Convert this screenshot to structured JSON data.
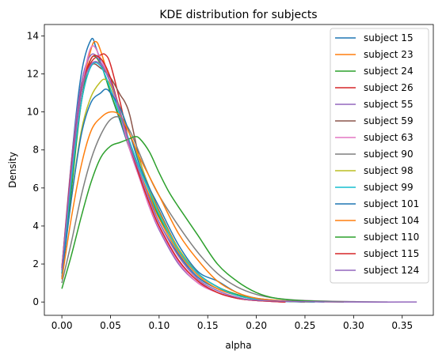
{
  "chart_data": {
    "type": "line",
    "title": "KDE distribution for subjects",
    "xlabel": "alpha",
    "ylabel": "Density",
    "xlim": [
      -0.018,
      0.382
    ],
    "ylim": [
      -0.7,
      14.6
    ],
    "xticks": [
      0.0,
      0.05,
      0.1,
      0.15,
      0.2,
      0.25,
      0.3,
      0.35
    ],
    "xtick_labels": [
      "0.00",
      "0.05",
      "0.10",
      "0.15",
      "0.20",
      "0.25",
      "0.30",
      "0.35"
    ],
    "yticks": [
      0,
      2,
      4,
      6,
      8,
      10,
      12,
      14
    ],
    "ytick_labels": [
      "0",
      "2",
      "4",
      "6",
      "8",
      "10",
      "12",
      "14"
    ],
    "grid": false,
    "legend_position": "top-right",
    "series": [
      {
        "name": "subject 15",
        "color": "#1f77b4",
        "x": [
          0.0,
          0.01,
          0.02,
          0.03,
          0.035,
          0.04,
          0.05,
          0.06,
          0.07,
          0.08,
          0.09,
          0.1,
          0.12,
          0.14,
          0.16,
          0.18,
          0.2,
          0.22,
          0.25
        ],
        "y": [
          1.2,
          7.5,
          12.0,
          13.8,
          13.4,
          12.6,
          11.0,
          9.5,
          8.0,
          6.8,
          5.5,
          4.2,
          2.5,
          1.3,
          0.7,
          0.35,
          0.15,
          0.05,
          0.0
        ]
      },
      {
        "name": "subject 23",
        "color": "#ff7f0e",
        "x": [
          0.0,
          0.01,
          0.02,
          0.03,
          0.035,
          0.04,
          0.05,
          0.06,
          0.07,
          0.08,
          0.09,
          0.1,
          0.12,
          0.14,
          0.16,
          0.18,
          0.2,
          0.23,
          0.26
        ],
        "y": [
          1.5,
          6.5,
          11.0,
          13.3,
          13.7,
          13.2,
          11.5,
          9.8,
          8.0,
          6.8,
          5.6,
          4.4,
          2.6,
          1.4,
          0.7,
          0.35,
          0.15,
          0.05,
          0.0
        ]
      },
      {
        "name": "subject 24",
        "color": "#2ca02c",
        "x": [
          0.0,
          0.01,
          0.02,
          0.03,
          0.04,
          0.05,
          0.06,
          0.07,
          0.08,
          0.09,
          0.1,
          0.12,
          0.14,
          0.16,
          0.18,
          0.2,
          0.23,
          0.26
        ],
        "y": [
          1.5,
          6.0,
          10.5,
          12.8,
          12.5,
          11.0,
          9.6,
          8.2,
          7.0,
          5.8,
          4.5,
          2.8,
          1.5,
          0.8,
          0.4,
          0.15,
          0.05,
          0.0
        ]
      },
      {
        "name": "subject 26",
        "color": "#d62728",
        "x": [
          0.0,
          0.01,
          0.02,
          0.03,
          0.04,
          0.045,
          0.05,
          0.06,
          0.07,
          0.08,
          0.09,
          0.1,
          0.12,
          0.14,
          0.16,
          0.18,
          0.2,
          0.23
        ],
        "y": [
          1.8,
          7.0,
          11.2,
          12.6,
          13.0,
          13.0,
          12.5,
          10.5,
          8.2,
          6.6,
          5.2,
          4.0,
          2.2,
          1.1,
          0.5,
          0.2,
          0.08,
          0.0
        ]
      },
      {
        "name": "subject 55",
        "color": "#9467bd",
        "x": [
          0.0,
          0.01,
          0.02,
          0.03,
          0.04,
          0.05,
          0.06,
          0.07,
          0.08,
          0.09,
          0.1,
          0.12,
          0.14,
          0.16,
          0.18,
          0.2,
          0.23
        ],
        "y": [
          1.7,
          7.5,
          11.5,
          13.0,
          12.6,
          11.5,
          10.0,
          8.0,
          6.5,
          5.0,
          3.8,
          2.0,
          1.0,
          0.5,
          0.2,
          0.08,
          0.0
        ]
      },
      {
        "name": "subject 59",
        "color": "#8c564b",
        "x": [
          0.0,
          0.01,
          0.02,
          0.03,
          0.04,
          0.05,
          0.06,
          0.065,
          0.07,
          0.08,
          0.09,
          0.1,
          0.12,
          0.14,
          0.16,
          0.18,
          0.2,
          0.23,
          0.25
        ],
        "y": [
          1.5,
          6.5,
          10.5,
          12.4,
          12.3,
          11.8,
          10.9,
          10.5,
          9.8,
          7.5,
          6.0,
          4.8,
          2.8,
          1.5,
          0.8,
          0.35,
          0.15,
          0.05,
          0.0
        ]
      },
      {
        "name": "subject 63",
        "color": "#e377c2",
        "x": [
          0.0,
          0.01,
          0.02,
          0.03,
          0.04,
          0.05,
          0.06,
          0.07,
          0.08,
          0.09,
          0.1,
          0.12,
          0.14,
          0.16,
          0.18,
          0.2,
          0.23
        ],
        "y": [
          1.6,
          7.0,
          11.0,
          13.4,
          12.8,
          11.5,
          9.8,
          8.0,
          6.5,
          5.0,
          3.9,
          2.1,
          1.0,
          0.5,
          0.2,
          0.08,
          0.0
        ]
      },
      {
        "name": "subject 90",
        "color": "#7f7f7f",
        "x": [
          0.0,
          0.01,
          0.02,
          0.03,
          0.04,
          0.05,
          0.06,
          0.07,
          0.08,
          0.09,
          0.1,
          0.12,
          0.14,
          0.16,
          0.18,
          0.2,
          0.22,
          0.25,
          0.3,
          0.335
        ],
        "y": [
          1.0,
          3.2,
          5.6,
          7.5,
          8.8,
          9.6,
          9.7,
          9.0,
          7.8,
          6.6,
          5.6,
          4.0,
          2.6,
          1.5,
          0.8,
          0.4,
          0.2,
          0.08,
          0.02,
          0.0
        ]
      },
      {
        "name": "subject 98",
        "color": "#bcbd22",
        "x": [
          0.0,
          0.01,
          0.02,
          0.03,
          0.04,
          0.045,
          0.05,
          0.06,
          0.07,
          0.08,
          0.09,
          0.1,
          0.12,
          0.14,
          0.16,
          0.18,
          0.2,
          0.23,
          0.26
        ],
        "y": [
          1.5,
          5.5,
          9.0,
          10.8,
          11.6,
          11.7,
          11.4,
          10.2,
          8.8,
          7.4,
          6.0,
          4.7,
          2.8,
          1.5,
          0.8,
          0.35,
          0.15,
          0.05,
          0.0
        ]
      },
      {
        "name": "subject 99",
        "color": "#17becf",
        "x": [
          0.0,
          0.01,
          0.02,
          0.03,
          0.04,
          0.05,
          0.06,
          0.07,
          0.08,
          0.09,
          0.1,
          0.12,
          0.14,
          0.16,
          0.18,
          0.2,
          0.23,
          0.26
        ],
        "y": [
          1.5,
          6.5,
          10.5,
          12.4,
          12.4,
          11.2,
          9.8,
          8.4,
          7.0,
          5.8,
          4.6,
          2.7,
          1.5,
          0.8,
          0.35,
          0.15,
          0.05,
          0.0
        ]
      },
      {
        "name": "subject 101",
        "color": "#1f77b4",
        "x": [
          0.0,
          0.01,
          0.02,
          0.03,
          0.04,
          0.045,
          0.05,
          0.06,
          0.07,
          0.08,
          0.09,
          0.1,
          0.12,
          0.14,
          0.16,
          0.18,
          0.2,
          0.23,
          0.27
        ],
        "y": [
          1.3,
          5.5,
          8.8,
          10.5,
          11.0,
          11.2,
          11.0,
          10.2,
          8.8,
          7.2,
          6.0,
          5.0,
          3.0,
          1.6,
          1.1,
          0.5,
          0.2,
          0.06,
          0.0
        ]
      },
      {
        "name": "subject 104",
        "color": "#ff7f0e",
        "x": [
          0.0,
          0.01,
          0.02,
          0.03,
          0.04,
          0.05,
          0.06,
          0.07,
          0.08,
          0.09,
          0.1,
          0.12,
          0.14,
          0.16,
          0.18,
          0.2,
          0.23,
          0.26,
          0.29
        ],
        "y": [
          1.2,
          4.5,
          7.2,
          9.0,
          9.7,
          10.0,
          9.8,
          8.8,
          7.6,
          6.6,
          5.6,
          3.6,
          2.2,
          1.1,
          0.5,
          0.2,
          0.06,
          0.02,
          0.0
        ]
      },
      {
        "name": "subject 110",
        "color": "#2ca02c",
        "x": [
          0.0,
          0.01,
          0.02,
          0.03,
          0.04,
          0.05,
          0.06,
          0.07,
          0.075,
          0.08,
          0.09,
          0.1,
          0.11,
          0.12,
          0.14,
          0.16,
          0.18,
          0.2,
          0.22,
          0.25,
          0.29
        ],
        "y": [
          0.7,
          2.5,
          4.5,
          6.3,
          7.6,
          8.2,
          8.4,
          8.6,
          8.7,
          8.6,
          7.9,
          6.8,
          5.8,
          5.0,
          3.5,
          2.0,
          1.1,
          0.5,
          0.2,
          0.06,
          0.0
        ]
      },
      {
        "name": "subject 115",
        "color": "#d62728",
        "x": [
          0.0,
          0.01,
          0.02,
          0.03,
          0.04,
          0.05,
          0.06,
          0.07,
          0.08,
          0.09,
          0.1,
          0.12,
          0.14,
          0.16,
          0.18,
          0.2,
          0.23
        ],
        "y": [
          1.8,
          7.2,
          11.0,
          12.8,
          12.8,
          11.8,
          10.0,
          8.2,
          6.6,
          5.2,
          4.0,
          2.2,
          1.1,
          0.5,
          0.2,
          0.08,
          0.0
        ]
      },
      {
        "name": "subject 124",
        "color": "#9467bd",
        "x": [
          0.0,
          0.01,
          0.02,
          0.03,
          0.04,
          0.05,
          0.06,
          0.07,
          0.08,
          0.09,
          0.1,
          0.12,
          0.14,
          0.16,
          0.18,
          0.2,
          0.25,
          0.3,
          0.365
        ],
        "y": [
          1.7,
          7.0,
          11.0,
          12.5,
          12.5,
          11.6,
          10.0,
          8.2,
          6.8,
          5.4,
          4.2,
          2.4,
          1.2,
          0.6,
          0.25,
          0.1,
          0.02,
          0.0,
          0.0
        ]
      }
    ]
  }
}
